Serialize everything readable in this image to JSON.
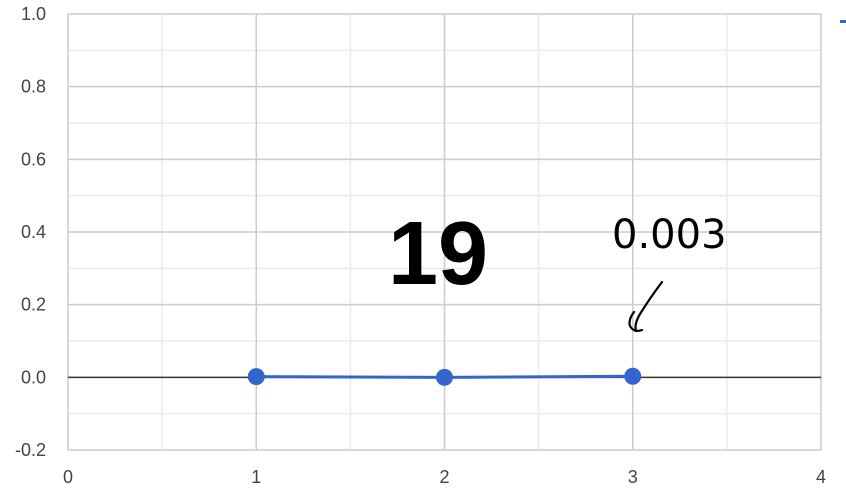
{
  "chart_data": {
    "type": "line",
    "title": "",
    "xlabel": "",
    "ylabel": "",
    "xlim": [
      0,
      4
    ],
    "ylim": [
      -0.2,
      1.0
    ],
    "x_ticks": [
      "0",
      "1",
      "2",
      "3",
      "4"
    ],
    "y_ticks": [
      "1.0",
      "0.8",
      "0.6",
      "0.4",
      "0.2",
      "0.0",
      "-0.2"
    ],
    "x_tick_values": [
      0,
      1,
      2,
      3,
      4
    ],
    "y_tick_values": [
      1.0,
      0.8,
      0.6,
      0.4,
      0.2,
      0.0,
      -0.2
    ],
    "grid": true,
    "series": [
      {
        "x": [
          1,
          2,
          3
        ],
        "values": [
          0.002,
          0.0,
          0.003
        ],
        "color": "#3366cc"
      }
    ],
    "annotations": {
      "big_number": "19",
      "handwritten_value": "0.003"
    }
  },
  "colors": {
    "series": "#3366cc",
    "major_grid": "#cccccc",
    "minor_grid": "#ebebeb",
    "zero_line": "#333333"
  }
}
